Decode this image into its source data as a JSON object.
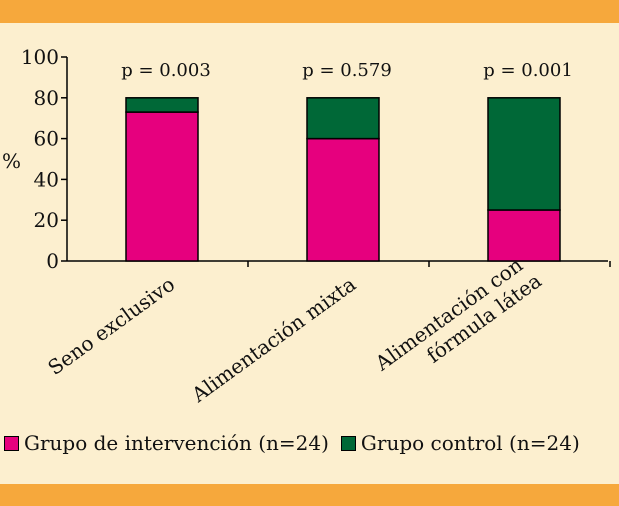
{
  "chart_data": {
    "type": "bar",
    "stacked": true,
    "ylabel": "%",
    "ylim": [
      0,
      100
    ],
    "yticks": [
      0,
      20,
      40,
      60,
      80,
      100
    ],
    "categories": [
      {
        "lines": [
          "Seno exclusivo"
        ]
      },
      {
        "lines": [
          "Alimentación mixta"
        ]
      },
      {
        "lines": [
          "Alimentación con",
          "fórmula látea"
        ]
      }
    ],
    "series": [
      {
        "name": "Grupo de intervención (n=24)",
        "color": "#E6007E",
        "values": [
          73,
          60,
          25
        ]
      },
      {
        "name": "Grupo control (n=24)",
        "color": "#006837",
        "values": [
          7,
          20,
          55
        ]
      }
    ],
    "annotations": [
      "p = 0.003",
      "p = 0.579",
      "p = 0.001"
    ]
  },
  "legend": {
    "items": [
      {
        "label": "Grupo de intervención (n=24)",
        "color": "#E6007E"
      },
      {
        "label": "Grupo control (n=24)",
        "color": "#006837"
      }
    ]
  }
}
